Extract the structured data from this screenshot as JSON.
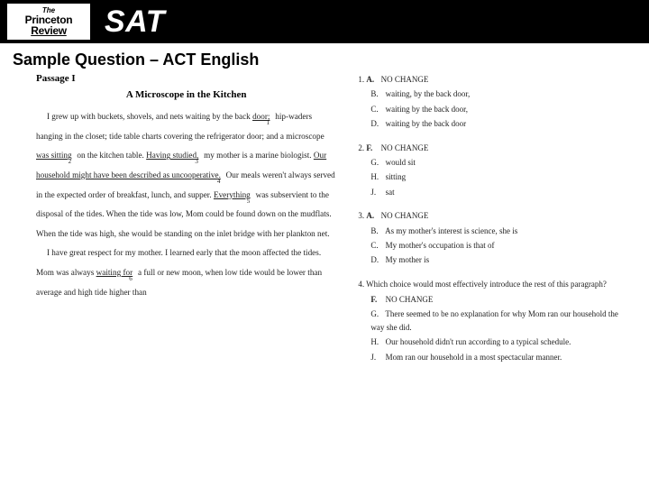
{
  "header": {
    "logo_line1": "The",
    "logo_line2": "Princeton",
    "logo_line3": "Review",
    "title": "SAT"
  },
  "subtitle": "Sample Question – ACT English",
  "passage": {
    "label": "Passage I",
    "title": "A Microscope in the Kitchen",
    "para1a": "I grew up with buckets, shovels, and nets waiting by the back ",
    "u1": "door;",
    "para1b": " hip-waders hanging in the closet; tide table charts covering the refrigerator door; and a microscope ",
    "u2": "was sitting",
    "para1c": " on the kitchen table. ",
    "u3": "Having studied,",
    "para1d": " my mother is a marine biologist. ",
    "u4": "Our household might have been described as uncooperative.",
    "para1e": " Our meals weren't always served in the expected order of breakfast, lunch, and supper. ",
    "u5": "Everything",
    "para1f": " was subservient to the disposal of the tides. When the tide was low, Mom could be found down on the mudflats. When the tide was high, she would be standing on the inlet bridge with her plankton net.",
    "para2a": "I have great respect for my mother. I learned early that the moon affected the tides. Mom was always ",
    "u6": "waiting for",
    "para2b": " a full or new moon, when low tide would be lower than average and high tide higher than"
  },
  "questions": [
    {
      "num": "1.",
      "options": [
        {
          "letter": "A.",
          "text": "NO CHANGE",
          "bold": true
        },
        {
          "letter": "B.",
          "text": "waiting, by the back door,",
          "bold": false
        },
        {
          "letter": "C.",
          "text": "waiting by the back door,",
          "bold": false
        },
        {
          "letter": "D.",
          "text": "waiting by the back door",
          "bold": false
        }
      ]
    },
    {
      "num": "2.",
      "options": [
        {
          "letter": "F.",
          "text": "NO CHANGE",
          "bold": true
        },
        {
          "letter": "G.",
          "text": "would sit",
          "bold": false
        },
        {
          "letter": "H.",
          "text": "sitting",
          "bold": false
        },
        {
          "letter": "J.",
          "text": "sat",
          "bold": false
        }
      ]
    },
    {
      "num": "3.",
      "options": [
        {
          "letter": "A.",
          "text": "NO CHANGE",
          "bold": true
        },
        {
          "letter": "B.",
          "text": "As my mother's interest is science, she is",
          "bold": false
        },
        {
          "letter": "C.",
          "text": "My mother's occupation is that of",
          "bold": false
        },
        {
          "letter": "D.",
          "text": "My mother is",
          "bold": false
        }
      ]
    },
    {
      "num": "4.",
      "stem": "Which choice would most effectively introduce the rest of this paragraph?",
      "options": [
        {
          "letter": "F.",
          "text": "NO CHANGE",
          "bold": true
        },
        {
          "letter": "G.",
          "text": "There seemed to be no explanation for why Mom ran our household the way she did.",
          "bold": false
        },
        {
          "letter": "H.",
          "text": "Our household didn't run according to a typical schedule.",
          "bold": false
        },
        {
          "letter": "J.",
          "text": "Mom ran our household in a most spectacular manner.",
          "bold": false
        }
      ]
    }
  ]
}
